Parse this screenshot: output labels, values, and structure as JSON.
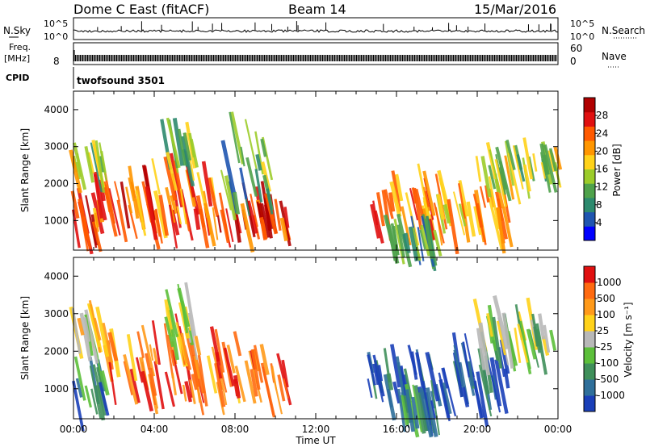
{
  "header": {
    "title": "Dome C East (fitACF)",
    "beam": "Beam 14",
    "date": "15/Mar/2016"
  },
  "strips": {
    "nsky_label": "N.Sky",
    "nsky_ticks": [
      "10^5",
      "10^0"
    ],
    "nsearch_label": "N.Search",
    "freq_label": "Freq.",
    "freq_unit": "[MHz]",
    "freq_ticks": [
      "8"
    ],
    "nave_ticks": [
      "60",
      "0"
    ],
    "nave_label": "Nave",
    "cpid_label": "CPID",
    "cpid_value": "twofsound 3501"
  },
  "chart_data": [
    {
      "type": "heatmap",
      "panel": "power",
      "ylabel": "Slant Range [km]",
      "yticks": [
        1000,
        2000,
        3000,
        4000
      ],
      "ylim": [
        200,
        4500
      ],
      "xlim": [
        0,
        24
      ],
      "colorbar": {
        "label": "Power [dB]",
        "ticks": [
          "4",
          "8",
          "12",
          "16",
          "20",
          "24",
          "28"
        ],
        "colors": [
          "#0000ff",
          "#1f55b0",
          "#2d8a6e",
          "#4fa24b",
          "#9ccc2a",
          "#ffd21a",
          "#ff9600",
          "#ff5a00",
          "#e01010",
          "#b00000"
        ]
      },
      "echo_regions": [
        {
          "t0": 0.0,
          "t1": 1.2,
          "r0": 500,
          "r1": 1500,
          "level": 0.85
        },
        {
          "t0": 1.0,
          "t1": 4.0,
          "r0": 800,
          "r1": 1900,
          "level": 0.75
        },
        {
          "t0": 3.5,
          "t1": 7.0,
          "r0": 800,
          "r1": 2300,
          "level": 0.7
        },
        {
          "t0": 4.5,
          "t1": 6.0,
          "r0": 2300,
          "r1": 3200,
          "level": 0.4
        },
        {
          "t0": 7.0,
          "t1": 10.5,
          "r0": 700,
          "r1": 1400,
          "level": 0.85
        },
        {
          "t0": 7.5,
          "t1": 9.8,
          "r0": 1400,
          "r1": 3300,
          "level": 0.35
        },
        {
          "t0": 0.0,
          "t1": 1.5,
          "r0": 2300,
          "r1": 2700,
          "level": 0.45
        },
        {
          "t0": 14.8,
          "t1": 17.8,
          "r0": 700,
          "r1": 1900,
          "level": 0.7
        },
        {
          "t0": 15.5,
          "t1": 18.0,
          "r0": 350,
          "r1": 500,
          "level": 0.3
        },
        {
          "t0": 18.0,
          "t1": 21.5,
          "r0": 700,
          "r1": 1800,
          "level": 0.6
        },
        {
          "t0": 20.0,
          "t1": 24.0,
          "r0": 2000,
          "r1": 2800,
          "level": 0.45
        }
      ]
    },
    {
      "type": "heatmap",
      "panel": "velocity",
      "ylabel": "Slant Range [km]",
      "yticks": [
        1000,
        2000,
        3000,
        4000
      ],
      "ylim": [
        200,
        4500
      ],
      "xlim": [
        0,
        24
      ],
      "xlabel": "Time UT",
      "xticks": [
        "00:00",
        "04:00",
        "08:00",
        "12:00",
        "16:00",
        "20:00",
        "00:00"
      ],
      "colorbar": {
        "label": "Velocity [m s⁻¹]",
        "ticks": [
          "1000",
          "500",
          "100",
          "25",
          "-25",
          "-100",
          "-500",
          "-1000"
        ],
        "colors": [
          "#1a3fb8",
          "#2f6f9a",
          "#3f8f5a",
          "#5cbf3a",
          "#b8b8b8",
          "#ffd21a",
          "#ff9a1a",
          "#ff6a10",
          "#e01010"
        ]
      },
      "echo_regions": [
        {
          "t0": 0.0,
          "t1": 1.5,
          "r0": 500,
          "r1": 1400,
          "level": 0.25
        },
        {
          "t0": 1.0,
          "t1": 7.0,
          "r0": 800,
          "r1": 2300,
          "level": 0.8
        },
        {
          "t0": 4.5,
          "t1": 6.0,
          "r0": 2300,
          "r1": 3200,
          "level": 0.5
        },
        {
          "t0": 7.0,
          "t1": 10.5,
          "r0": 700,
          "r1": 2200,
          "level": 0.82
        },
        {
          "t0": 0.0,
          "t1": 1.5,
          "r0": 2300,
          "r1": 2700,
          "level": 0.55
        },
        {
          "t0": 14.5,
          "t1": 18.0,
          "r0": 700,
          "r1": 1800,
          "level": 0.15
        },
        {
          "t0": 16.0,
          "t1": 18.0,
          "r0": 350,
          "r1": 500,
          "level": 0.2
        },
        {
          "t0": 18.0,
          "t1": 21.5,
          "r0": 700,
          "r1": 1900,
          "level": 0.1
        },
        {
          "t0": 20.0,
          "t1": 24.0,
          "r0": 2000,
          "r1": 2800,
          "level": 0.45
        }
      ]
    }
  ]
}
